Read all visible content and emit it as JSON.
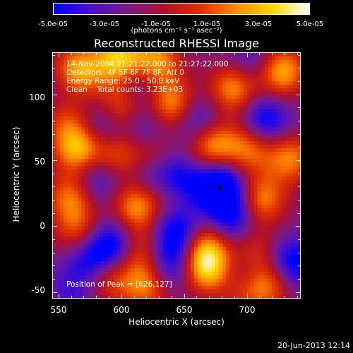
{
  "colorbar": {
    "tick_labels": [
      "-5.0e-05",
      "-3.0e-05",
      "-1.0e-05",
      "1.0e-05",
      "3.0e-05",
      "5.0e-05"
    ],
    "units": "(photons cm⁻² s⁻¹ asec⁻²)",
    "colors": [
      "#0000ff",
      "#4a10c8",
      "#7a1a8a",
      "#b0102a",
      "#e03000",
      "#ff8a00",
      "#ffd700",
      "#ffffff"
    ]
  },
  "title": "Reconstructed RHESSI Image",
  "info_lines": [
    "14-Nov-2004 21:21:22.000 to 21:27:22.000",
    "Detectors: 4F 5F 6F 7F 8F, Att 0",
    "Energy Range: 25.0 - 50.0 keV",
    "Clean    Total counts: 3.23E+03"
  ],
  "peak_text": "Position of Peak = [626,127]",
  "footer": "20-Jun-2013 12:14",
  "chart_data": {
    "type": "heatmap",
    "title": "Reconstructed RHESSI Image",
    "xlabel": "Heliocentric X (arcsec)",
    "ylabel": "Heliocentric Y (arcsec)",
    "xlim": [
      545,
      743
    ],
    "ylim": [
      -55,
      132
    ],
    "xticks": [
      550,
      600,
      650,
      700
    ],
    "yticks": [
      -50,
      0,
      50,
      100
    ],
    "value_range": [
      -5e-05,
      5e-05
    ],
    "peak": [
      626,
      127
    ],
    "colormap": "blue-purple-red-orange-yellow-white",
    "blobs": [
      {
        "x": 565,
        "y": 118,
        "v": 0.9
      },
      {
        "x": 598,
        "y": 127,
        "v": 1.0
      },
      {
        "x": 628,
        "y": 125,
        "v": 0.8
      },
      {
        "x": 690,
        "y": 105,
        "v": 0.8
      },
      {
        "x": 728,
        "y": 118,
        "v": 0.9
      },
      {
        "x": 555,
        "y": 85,
        "v": 0.5
      },
      {
        "x": 600,
        "y": 92,
        "v": 0.7
      },
      {
        "x": 641,
        "y": 92,
        "v": 0.85
      },
      {
        "x": 565,
        "y": 60,
        "v": 0.95
      },
      {
        "x": 595,
        "y": 55,
        "v": 0.6
      },
      {
        "x": 625,
        "y": 52,
        "v": 0.6
      },
      {
        "x": 672,
        "y": 62,
        "v": 0.85
      },
      {
        "x": 702,
        "y": 60,
        "v": 0.7
      },
      {
        "x": 735,
        "y": 52,
        "v": 0.7
      },
      {
        "x": 560,
        "y": 22,
        "v": 0.7
      },
      {
        "x": 612,
        "y": 15,
        "v": 0.8
      },
      {
        "x": 640,
        "y": 30,
        "v": 0.6
      },
      {
        "x": 712,
        "y": 20,
        "v": 0.75
      },
      {
        "x": 565,
        "y": -5,
        "v": 0.55
      },
      {
        "x": 612,
        "y": -18,
        "v": 0.6
      },
      {
        "x": 667,
        "y": -15,
        "v": 0.65
      },
      {
        "x": 705,
        "y": -20,
        "v": 0.55
      },
      {
        "x": 590,
        "y": -40,
        "v": 0.55
      },
      {
        "x": 620,
        "y": -45,
        "v": 0.7
      },
      {
        "x": 668,
        "y": -32,
        "v": 0.95
      },
      {
        "x": 720,
        "y": -42,
        "v": 0.75
      },
      {
        "x": 700,
        "y": -50,
        "v": 0.5
      },
      {
        "x": 585,
        "y": 75,
        "v": -0.5
      },
      {
        "x": 660,
        "y": 80,
        "v": -0.6
      },
      {
        "x": 715,
        "y": 80,
        "v": -0.7
      },
      {
        "x": 620,
        "y": 75,
        "v": -0.4
      },
      {
        "x": 645,
        "y": 35,
        "v": -0.9
      },
      {
        "x": 625,
        "y": 40,
        "v": -0.6
      },
      {
        "x": 679,
        "y": 29,
        "v": -1.0
      },
      {
        "x": 690,
        "y": 5,
        "v": -0.6
      },
      {
        "x": 580,
        "y": 35,
        "v": -0.5
      },
      {
        "x": 595,
        "y": -15,
        "v": -0.8
      },
      {
        "x": 575,
        "y": -25,
        "v": -0.6
      },
      {
        "x": 645,
        "y": -5,
        "v": -0.7
      },
      {
        "x": 640,
        "y": -30,
        "v": -0.6
      },
      {
        "x": 735,
        "y": -30,
        "v": -0.8
      },
      {
        "x": 700,
        "y": -35,
        "v": -0.5
      },
      {
        "x": 555,
        "y": 100,
        "v": -0.3
      },
      {
        "x": 612,
        "y": 108,
        "v": -0.5
      },
      {
        "x": 705,
        "y": 125,
        "v": -0.4
      },
      {
        "x": 560,
        "y": -50,
        "v": -0.3
      }
    ]
  }
}
